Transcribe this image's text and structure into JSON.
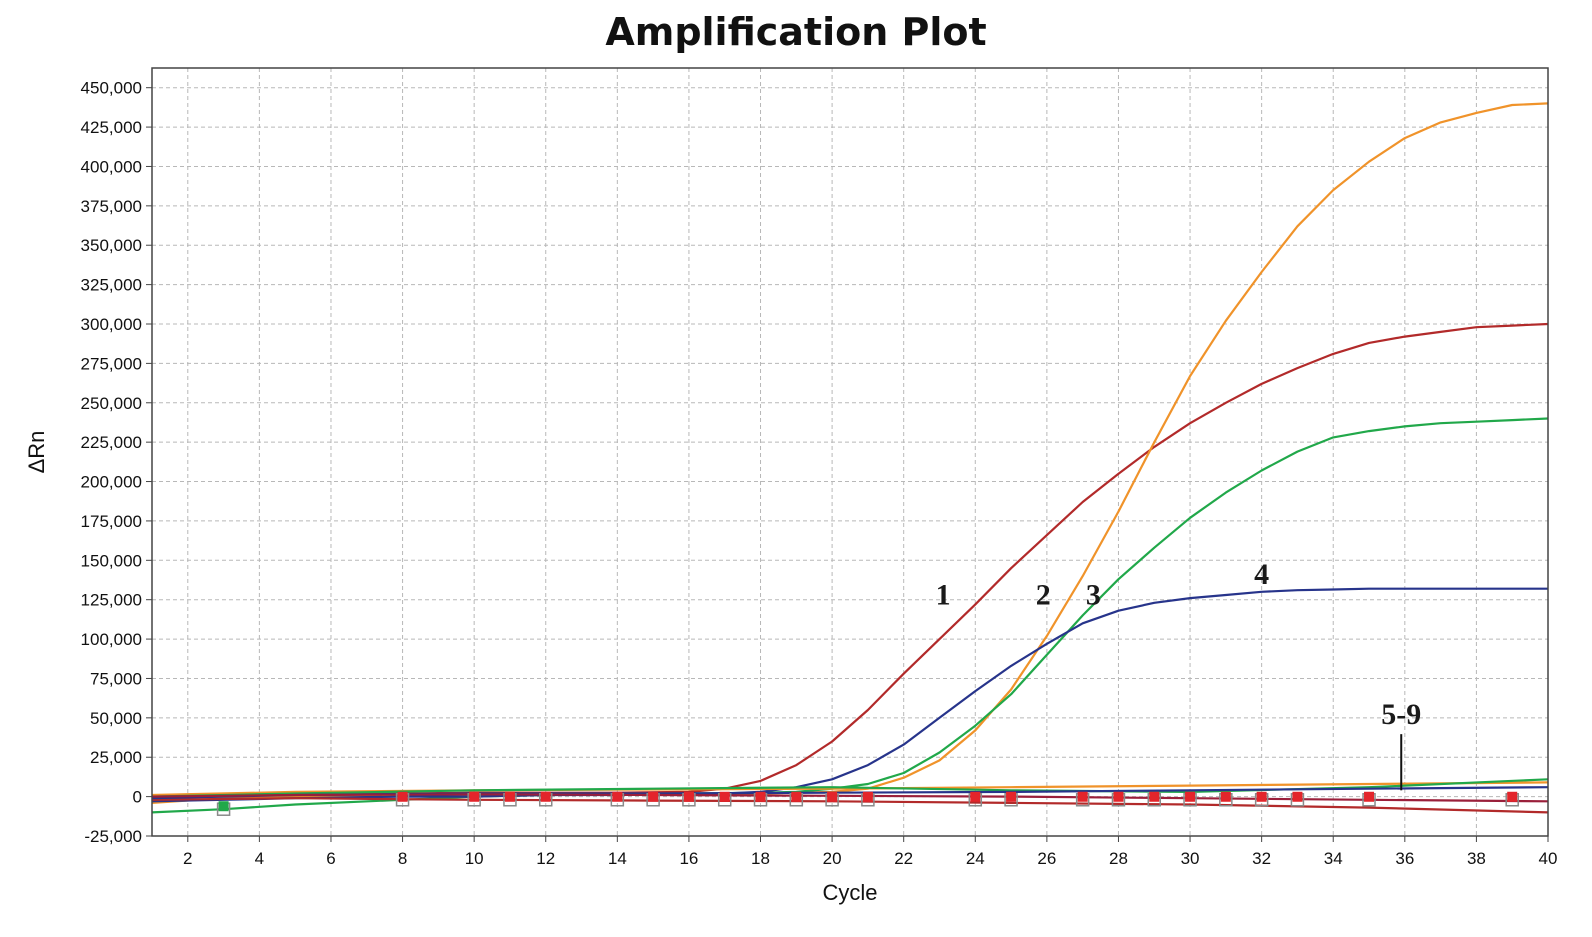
{
  "chart_data": {
    "type": "line",
    "title": "Amplification Plot",
    "xlabel": "Cycle",
    "ylabel": "ΔRn",
    "xlim": [
      1,
      40
    ],
    "ylim": [
      -25000,
      450000
    ],
    "xticks": [
      2,
      4,
      6,
      8,
      10,
      12,
      14,
      16,
      18,
      20,
      22,
      24,
      26,
      28,
      30,
      32,
      34,
      36,
      38,
      40
    ],
    "yticks": [
      -25000,
      0,
      25000,
      50000,
      75000,
      100000,
      125000,
      150000,
      175000,
      200000,
      225000,
      250000,
      275000,
      300000,
      325000,
      350000,
      375000,
      400000,
      425000,
      450000
    ],
    "ytick_labels": [
      "-25,000",
      "0",
      "25,000",
      "50,000",
      "75,000",
      "100,000",
      "125,000",
      "150,000",
      "175,000",
      "200,000",
      "225,000",
      "250,000",
      "275,000",
      "300,000",
      "325,000",
      "350,000",
      "375,000",
      "400,000",
      "425,000",
      "450,000"
    ],
    "grid": true,
    "series": [
      {
        "color": "#b22a2a",
        "x": [
          1,
          3,
          5,
          8,
          10,
          12,
          14,
          16,
          17,
          18,
          19,
          20,
          21,
          22,
          23,
          24,
          25,
          26,
          27,
          28,
          29,
          30,
          31,
          32,
          33,
          34,
          35,
          36,
          37,
          38,
          39,
          40
        ],
        "y": [
          -1000,
          0,
          1000,
          2000,
          2500,
          2500,
          2500,
          3000,
          5000,
          10000,
          20000,
          35000,
          55000,
          78000,
          100000,
          122000,
          145000,
          166000,
          187000,
          205000,
          222000,
          237000,
          250000,
          262000,
          272000,
          281000,
          288000,
          292000,
          295000,
          298000,
          299000,
          300000
        ]
      },
      {
        "color": "#f0932a",
        "x": [
          1,
          3,
          5,
          8,
          10,
          12,
          14,
          16,
          18,
          19,
          20,
          21,
          22,
          23,
          24,
          25,
          26,
          27,
          28,
          29,
          30,
          31,
          32,
          33,
          34,
          35,
          36,
          37,
          38,
          39,
          40
        ],
        "y": [
          -4000,
          -1000,
          0,
          1000,
          1000,
          1000,
          1500,
          1500,
          2000,
          2500,
          3000,
          5000,
          12000,
          23000,
          42000,
          68000,
          102000,
          140000,
          181000,
          225000,
          267000,
          302000,
          333000,
          362000,
          385000,
          403000,
          418000,
          428000,
          434000,
          439000,
          440000
        ]
      },
      {
        "color": "#21a84a",
        "x": [
          1,
          3,
          5,
          8,
          10,
          12,
          14,
          16,
          18,
          19,
          20,
          21,
          22,
          23,
          24,
          25,
          26,
          27,
          28,
          29,
          30,
          31,
          32,
          33,
          34,
          35,
          36,
          37,
          38,
          39,
          40
        ],
        "y": [
          -10000,
          -8000,
          -5000,
          -2000,
          0,
          1000,
          1500,
          2000,
          2500,
          3000,
          5000,
          8000,
          15000,
          28000,
          45000,
          65000,
          90000,
          115000,
          138000,
          158000,
          177000,
          193000,
          207000,
          219000,
          228000,
          232000,
          235000,
          237000,
          238000,
          239000,
          240000
        ]
      },
      {
        "color": "#27348b",
        "x": [
          1,
          3,
          5,
          8,
          10,
          12,
          14,
          16,
          17,
          18,
          19,
          20,
          21,
          22,
          23,
          24,
          25,
          26,
          27,
          28,
          29,
          30,
          31,
          32,
          33,
          34,
          35,
          36,
          37,
          38,
          39,
          40
        ],
        "y": [
          -3000,
          -2000,
          -1000,
          0,
          0,
          1000,
          1000,
          1500,
          2000,
          3000,
          6000,
          11000,
          20000,
          33000,
          50000,
          67000,
          83000,
          97000,
          110000,
          118000,
          123000,
          126000,
          128000,
          130000,
          131000,
          131500,
          132000,
          132000,
          132000,
          132000,
          132000,
          132000
        ]
      },
      {
        "color": "#f0932a",
        "x": [
          1,
          5,
          10,
          15,
          20,
          25,
          30,
          35,
          40
        ],
        "y": [
          1000,
          3000,
          4000,
          4500,
          5000,
          6000,
          7000,
          8000,
          9000
        ]
      },
      {
        "color": "#21a84a",
        "x": [
          1,
          5,
          10,
          15,
          20,
          25,
          30,
          35,
          40
        ],
        "y": [
          0,
          2000,
          4000,
          5000,
          6000,
          4000,
          3000,
          6000,
          11000
        ]
      },
      {
        "color": "#b22a2a",
        "x": [
          1,
          5,
          10,
          15,
          20,
          25,
          30,
          35,
          40
        ],
        "y": [
          -2000,
          -1000,
          -2000,
          -2500,
          -3000,
          -4000,
          -5000,
          -7000,
          -10000
        ]
      },
      {
        "color": "#27348b",
        "x": [
          1,
          5,
          10,
          15,
          20,
          25,
          30,
          35,
          40
        ],
        "y": [
          -1000,
          1000,
          2000,
          2000,
          2500,
          3000,
          4000,
          5000,
          6000
        ]
      },
      {
        "color": "#9a1f3a",
        "x": [
          1,
          5,
          10,
          15,
          20,
          25,
          30,
          35,
          40
        ],
        "y": [
          0,
          1000,
          1500,
          1000,
          500,
          0,
          -1000,
          -2000,
          -3000
        ]
      }
    ],
    "markers": [
      {
        "x": 3,
        "y": -8000,
        "color": "#21a84a"
      },
      {
        "x": 8,
        "y": -2000,
        "color": "#e3252b"
      },
      {
        "x": 10,
        "y": -2000,
        "color": "#e3252b"
      },
      {
        "x": 11,
        "y": -2000,
        "color": "#e3252b"
      },
      {
        "x": 12,
        "y": -2000,
        "color": "#e3252b"
      },
      {
        "x": 14,
        "y": -2000,
        "color": "#e3252b"
      },
      {
        "x": 15,
        "y": -2000,
        "color": "#e3252b"
      },
      {
        "x": 16,
        "y": -2000,
        "color": "#e3252b"
      },
      {
        "x": 17,
        "y": -2000,
        "color": "#e3252b"
      },
      {
        "x": 18,
        "y": -2000,
        "color": "#e3252b"
      },
      {
        "x": 19,
        "y": -2000,
        "color": "#e3252b"
      },
      {
        "x": 20,
        "y": -2000,
        "color": "#e3252b"
      },
      {
        "x": 21,
        "y": -2000,
        "color": "#e3252b"
      },
      {
        "x": 24,
        "y": -2000,
        "color": "#e3252b"
      },
      {
        "x": 25,
        "y": -2000,
        "color": "#e3252b"
      },
      {
        "x": 27,
        "y": -2000,
        "color": "#e3252b"
      },
      {
        "x": 28,
        "y": -2000,
        "color": "#e3252b"
      },
      {
        "x": 29,
        "y": -2000,
        "color": "#e3252b"
      },
      {
        "x": 30,
        "y": -2000,
        "color": "#e3252b"
      },
      {
        "x": 31,
        "y": -2000,
        "color": "#e3252b"
      },
      {
        "x": 32,
        "y": -2000,
        "color": "#e3252b"
      },
      {
        "x": 33,
        "y": -2000,
        "color": "#e3252b"
      },
      {
        "x": 35,
        "y": -2000,
        "color": "#e3252b"
      },
      {
        "x": 39,
        "y": -2000,
        "color": "#e3252b"
      }
    ],
    "annotations": [
      {
        "text": "1",
        "x": 23.1,
        "y": 122000
      },
      {
        "text": "2",
        "x": 25.9,
        "y": 122000
      },
      {
        "text": "3",
        "x": 27.3,
        "y": 122000
      },
      {
        "text": "4",
        "x": 32.0,
        "y": 135000
      },
      {
        "text": "5-9",
        "x": 35.9,
        "y": 46000
      }
    ]
  }
}
